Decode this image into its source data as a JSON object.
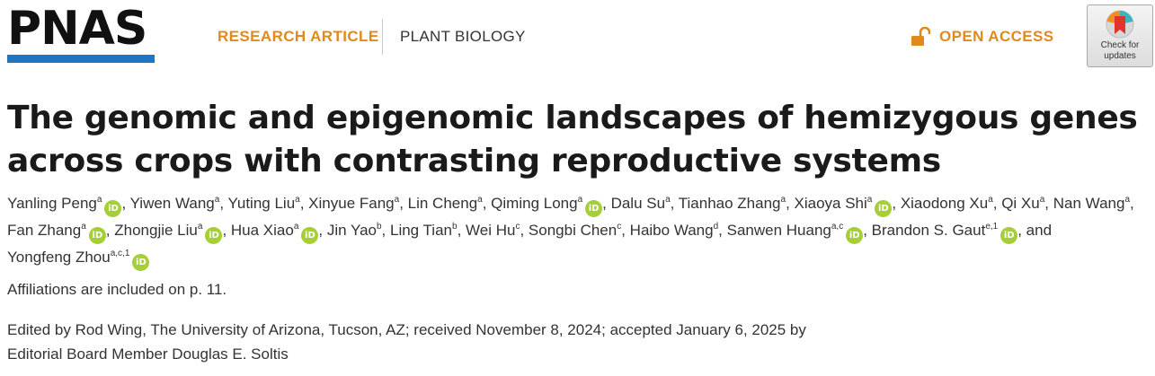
{
  "header": {
    "logo": "PNAS",
    "article_type": "RESEARCH ARTICLE",
    "category": "PLANT BIOLOGY",
    "open_access": "OPEN ACCESS",
    "check_updates_line1": "Check for",
    "check_updates_line2": "updates"
  },
  "title": "The genomic and epigenomic landscapes of hemizygous genes across crops with contrasting reproductive systems",
  "authors": [
    {
      "name": "Yanling Peng",
      "sup": "a",
      "orcid": true,
      "sep": ", "
    },
    {
      "name": "Yiwen Wang",
      "sup": "a",
      "orcid": false,
      "sep": ", "
    },
    {
      "name": "Yuting Liu",
      "sup": "a",
      "orcid": false,
      "sep": ", "
    },
    {
      "name": "Xinyue Fang",
      "sup": "a",
      "orcid": false,
      "sep": ", "
    },
    {
      "name": "Lin Cheng",
      "sup": "a",
      "orcid": false,
      "sep": ", "
    },
    {
      "name": "Qiming Long",
      "sup": "a",
      "orcid": true,
      "sep": ", "
    },
    {
      "name": "Dalu Su",
      "sup": "a",
      "orcid": false,
      "sep": ", "
    },
    {
      "name": "Tianhao Zhang",
      "sup": "a",
      "orcid": false,
      "sep": ", "
    },
    {
      "name": "Xiaoya Shi",
      "sup": "a",
      "orcid": true,
      "sep": ", "
    },
    {
      "name": "Xiaodong Xu",
      "sup": "a",
      "orcid": false,
      "sep": ", "
    },
    {
      "name": "Qi Xu",
      "sup": "a",
      "orcid": false,
      "sep": ", "
    },
    {
      "name": "Nan Wang",
      "sup": "a",
      "orcid": false,
      "sep": ", "
    },
    {
      "name": "Fan Zhang",
      "sup": "a",
      "orcid": true,
      "sep": ", "
    },
    {
      "name": "Zhongjie Liu",
      "sup": "a",
      "orcid": true,
      "sep": ", "
    },
    {
      "name": "Hua Xiao",
      "sup": "a",
      "orcid": true,
      "sep": ", "
    },
    {
      "name": "Jin Yao",
      "sup": "b",
      "orcid": false,
      "sep": ", "
    },
    {
      "name": "Ling Tian",
      "sup": "b",
      "orcid": false,
      "sep": ", "
    },
    {
      "name": "Wei Hu",
      "sup": "c",
      "orcid": false,
      "sep": ", "
    },
    {
      "name": "Songbi Chen",
      "sup": "c",
      "orcid": false,
      "sep": ", "
    },
    {
      "name": "Haibo Wang",
      "sup": "d",
      "orcid": false,
      "sep": ", "
    },
    {
      "name": "Sanwen Huang",
      "sup": "a,c",
      "orcid": true,
      "sep": ", "
    },
    {
      "name": "Brandon S. Gaut",
      "sup": "e,1",
      "orcid": true,
      "sep": ", and "
    },
    {
      "name": "Yongfeng Zhou",
      "sup": "a,c,1",
      "orcid": true,
      "sep": ""
    }
  ],
  "orcid_label": "iD",
  "affiliations_note": "Affiliations are included on p. 11.",
  "edited_line1": "Edited by Rod Wing, The University of Arizona, Tucson, AZ; received November 8, 2024; accepted January 6, 2025 by",
  "edited_line2": "Editorial Board Member Douglas E. Soltis",
  "colors": {
    "accent_orange": "#e08a1e",
    "logo_blue": "#1f75c2",
    "orcid_green": "#a6ce39"
  }
}
